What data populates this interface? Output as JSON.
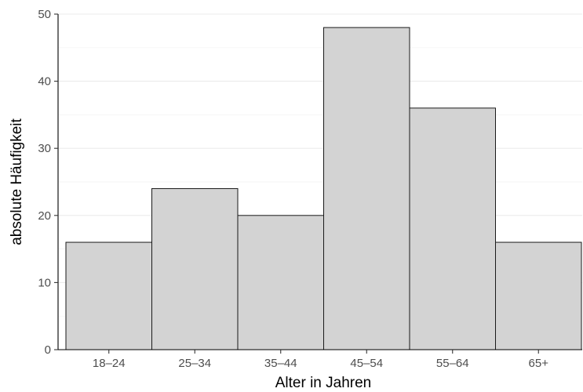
{
  "chart_data": {
    "type": "bar",
    "categories": [
      "18–24",
      "25–34",
      "35–44",
      "45–54",
      "55–64",
      "65+"
    ],
    "values": [
      16,
      24,
      20,
      48,
      36,
      16
    ],
    "title": "",
    "xlabel": "Alter in Jahren",
    "ylabel": "absolute Häufigkeit",
    "ylim": [
      0,
      50
    ],
    "yticks": [
      0,
      10,
      20,
      30,
      40,
      50
    ],
    "ytick_labels": [
      "0",
      "10",
      "20",
      "30",
      "40",
      "50"
    ],
    "grid": "horizontal major and minor",
    "bar_fill": "#d3d3d3",
    "bar_stroke": "#1a1a1a",
    "legend": "none"
  }
}
